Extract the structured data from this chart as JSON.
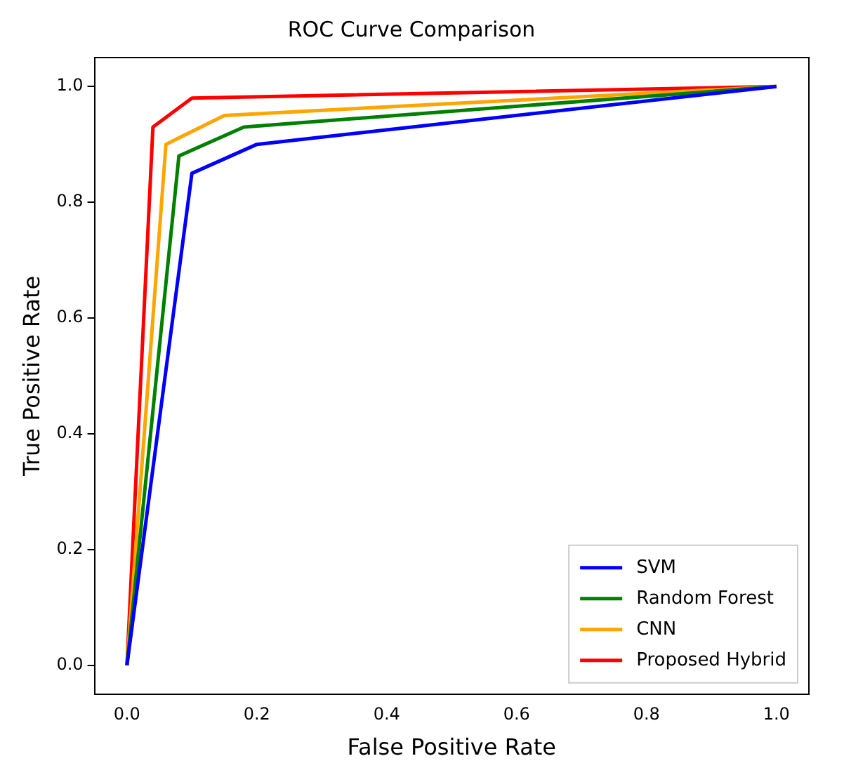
{
  "chart_data": {
    "type": "line",
    "title": "ROC Curve Comparison",
    "xlabel": "False Positive Rate",
    "ylabel": "True Positive Rate",
    "xlim": [
      -0.05,
      1.05
    ],
    "ylim": [
      -0.05,
      1.05
    ],
    "xticks": [
      {
        "value": 0,
        "label": "0.0"
      },
      {
        "value": 0.2,
        "label": "0.2"
      },
      {
        "value": 0.4,
        "label": "0.4"
      },
      {
        "value": 0.6,
        "label": "0.6"
      },
      {
        "value": 0.8,
        "label": "0.8"
      },
      {
        "value": 1,
        "label": "1.0"
      }
    ],
    "yticks": [
      {
        "value": 0,
        "label": "0.0"
      },
      {
        "value": 0.2,
        "label": "0.2"
      },
      {
        "value": 0.4,
        "label": "0.4"
      },
      {
        "value": 0.6,
        "label": "0.6"
      },
      {
        "value": 0.8,
        "label": "0.8"
      },
      {
        "value": 1,
        "label": "1.0"
      }
    ],
    "grid": false,
    "legend": "bottom right",
    "marker": "none",
    "line_style": "solid",
    "series": [
      {
        "name": "SVM",
        "color": "#0000ff",
        "x": [
          0,
          0.1,
          0.2,
          1
        ],
        "values": [
          0,
          0.85,
          0.9,
          1
        ]
      },
      {
        "name": "Random Forest",
        "color": "#008000",
        "x": [
          0,
          0.08,
          0.18,
          1
        ],
        "values": [
          0,
          0.88,
          0.93,
          1
        ]
      },
      {
        "name": "CNN",
        "color": "#ffa500",
        "x": [
          0,
          0.06,
          0.15,
          1
        ],
        "values": [
          0,
          0.9,
          0.95,
          1
        ]
      },
      {
        "name": "Proposed Hybrid",
        "color": "#ff0000",
        "x": [
          0,
          0.04,
          0.1,
          1
        ],
        "values": [
          0,
          0.93,
          0.98,
          1
        ]
      }
    ]
  }
}
